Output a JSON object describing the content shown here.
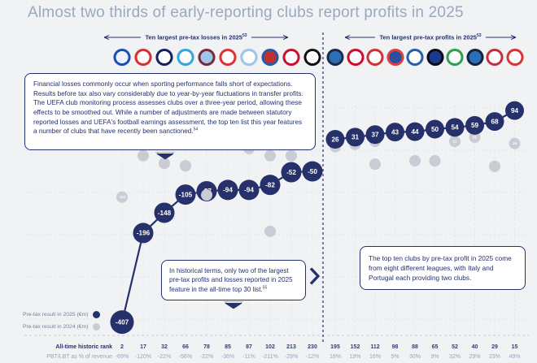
{
  "page": {
    "title": "Almost two thirds of early-reporting clubs report profits in 2025"
  },
  "headers": {
    "losses": {
      "text": "Ten largest pre-tax losses in 2025",
      "sup": "53"
    },
    "profits": {
      "text": "Ten largest pre-tax profits in 2025",
      "sup": "53"
    }
  },
  "info_box": {
    "text": "Financial losses commonly occur when sporting performance falls short of expectations. Results before tax also vary considerably due to year-by-year fluctuations in transfer profits. The UEFA club monitoring process assesses clubs over a three-year period, allowing these effects to be smoothed out. While a number of adjustments are made between statutory reported losses and UEFA's football earnings assessment, the top ten list this year features a number of clubs that have recently been sanctioned.",
    "sup": "54"
  },
  "callout_historical": {
    "text": "In historical terms, only two of the largest pre-tax profits and losses reported in 2025 feature in the all-time top 30 list.",
    "sup": "55"
  },
  "callout_top_ten": {
    "text": "The top ten clubs by pre-tax profit in 2025 come from eight different leagues, with Italy and Portugal each providing two clubs."
  },
  "legend": {
    "y2025": "Pre-tax result in 2025 (€m)",
    "y2024": "Pre-tax result in 2024 (€m)"
  },
  "colors": {
    "navy": "#26306b",
    "gray_marker": "#c9ccd4",
    "title": "#9aa8bf",
    "grid": "#e2e4ea",
    "muted": "#9aa4b8"
  },
  "chart_data": {
    "type": "line",
    "title": "Almost two thirds of early-reporting clubs report profits in 2025",
    "unit": "€m",
    "legend_position": "bottom-left",
    "series": [
      {
        "name": "Ten largest pre-tax losses in 2025 (€m)",
        "values": [
          -407,
          -196,
          -148,
          -105,
          -97,
          -94,
          -94,
          -82,
          -52,
          -50
        ]
      },
      {
        "name": "Ten largest pre-tax profits in 2025 (€m)",
        "values": [
          26,
          31,
          37,
          43,
          44,
          50,
          54,
          59,
          68,
          94
        ]
      }
    ],
    "markers_2024_note": "small gray dots = pre-tax result in 2024 (€m); most labels too small to read in source",
    "markers_2024": {
      "losses": [
        {
          "col": 0,
          "y_value_approx": -111,
          "label": "-111"
        },
        {
          "col": 1,
          "y_value_approx": -13,
          "label": ""
        },
        {
          "col": 2,
          "y_value_approx": -31,
          "label": ""
        },
        {
          "col": 3,
          "y_value_approx": -37,
          "label": ""
        },
        {
          "col": 4,
          "y_value_approx": -106,
          "label": "",
          "front": true
        },
        {
          "col": 5,
          "y_value_approx": 15,
          "label": ""
        },
        {
          "col": 6,
          "y_value_approx": 4,
          "label": ""
        },
        {
          "col": 7,
          "y_value_approx": -13,
          "label": ""
        },
        {
          "col": 8,
          "y_value_approx": -13,
          "label": ""
        },
        {
          "col": 7,
          "y_value_approx": -192,
          "label": ""
        }
      ],
      "profits": [
        {
          "col": 0,
          "y_value_approx": 8,
          "label": "8"
        },
        {
          "col": 1,
          "y_value_approx": 14,
          "label": "14"
        },
        {
          "col": 2,
          "y_value_approx": 21,
          "label": "21"
        },
        {
          "col": 2,
          "y_value_approx": -33,
          "label": ""
        },
        {
          "col": 4,
          "y_value_approx": -25,
          "label": ""
        },
        {
          "col": 5,
          "y_value_approx": -25,
          "label": ""
        },
        {
          "col": 6,
          "y_value_approx": 21,
          "label": "21"
        },
        {
          "col": 7,
          "y_value_approx": 31,
          "label": "31"
        },
        {
          "col": 8,
          "y_value_approx": -38,
          "label": ""
        },
        {
          "col": 9,
          "y_value_approx": 16,
          "label": "16"
        }
      ]
    },
    "rows": {
      "rank_label": "All-time historic rank",
      "pct_label": "PBT/LBT as % of revenue",
      "losses_rank": [
        "2",
        "17",
        "32",
        "66",
        "78",
        "85",
        "87",
        "102",
        "213",
        "230"
      ],
      "losses_pct": [
        "-69%",
        "-120%",
        "-22%",
        "-56%",
        "-22%",
        "-36%",
        "-11%",
        "-211%",
        "-29%",
        "-12%"
      ],
      "profits_rank": [
        "195",
        "152",
        "112",
        "98",
        "88",
        "65",
        "52",
        "40",
        "29",
        "15"
      ],
      "profits_pct": [
        "18%",
        "19%",
        "16%",
        "5%",
        "30%",
        "9%",
        "32%",
        "29%",
        "23%",
        "49%"
      ]
    }
  },
  "logos": {
    "losses": [
      {
        "c1": "#1b4db3",
        "c2": "#eef3fb"
      },
      {
        "c1": "#d42e2e",
        "c2": "#ffffff"
      },
      {
        "c1": "#13205a",
        "c2": "#ffffff"
      },
      {
        "c1": "#35a6dc",
        "c2": "#ffffff"
      },
      {
        "c1": "#7a2740",
        "c2": "#9cc6e8"
      },
      {
        "c1": "#d93333",
        "c2": "#ffffff"
      },
      {
        "c1": "#9fc6e8",
        "c2": "#ffffff"
      },
      {
        "c1": "#2857a4",
        "c2": "#c03030"
      },
      {
        "c1": "#c8102e",
        "c2": "#ffffff"
      },
      {
        "c1": "#111111",
        "c2": "#ffffff"
      }
    ],
    "profits": [
      {
        "c1": "#1b2a4a",
        "c2": "#2a6fb8"
      },
      {
        "c1": "#c8102e",
        "c2": "#ffffff"
      },
      {
        "c1": "#d03038",
        "c2": "#ffffff"
      },
      {
        "c1": "#dc4040",
        "c2": "#2a4fa0"
      },
      {
        "c1": "#2a5fa8",
        "c2": "#ffffff"
      },
      {
        "c1": "#0a0a14",
        "c2": "#1a3a8e"
      },
      {
        "c1": "#2f9e4f",
        "c2": "#ffffff"
      },
      {
        "c1": "#14213d",
        "c2": "#2a6fb8"
      },
      {
        "c1": "#c03040",
        "c2": "#ffffff"
      },
      {
        "c1": "#d8333b",
        "c2": "#ffffff"
      }
    ]
  }
}
